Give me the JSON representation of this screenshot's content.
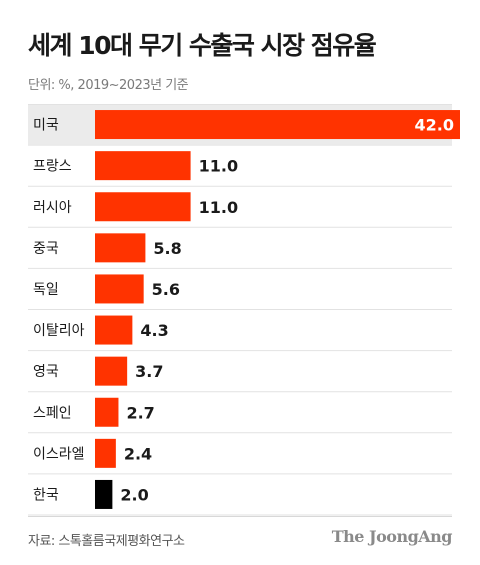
{
  "title": "세계 10대 무기 수출국 시장 점유율",
  "subtitle": "단위: %, 2019~2023년 기준",
  "source": "자료: 스톡홀름국제평화연구소",
  "logo": "The JoongAng",
  "colors": {
    "bar": "#ff3300",
    "highlight_bar": "#000000",
    "top_row_bg": "#ebebeb"
  },
  "chart_data": {
    "type": "bar",
    "orientation": "horizontal",
    "title": "세계 10대 무기 수출국 시장 점유율",
    "subtitle": "단위: %, 2019~2023년 기준",
    "categories": [
      "미국",
      "프랑스",
      "러시아",
      "중국",
      "독일",
      "이탈리아",
      "영국",
      "스페인",
      "이스라엘",
      "한국"
    ],
    "values": [
      42.0,
      11.0,
      11.0,
      5.8,
      5.6,
      4.3,
      3.7,
      2.7,
      2.4,
      2.0
    ],
    "labels": [
      "42.0",
      "11.0",
      "11.0",
      "5.8",
      "5.6",
      "4.3",
      "3.7",
      "2.7",
      "2.4",
      "2.0"
    ],
    "highlight": "한국",
    "xlim": [
      0,
      42.0
    ],
    "grid": false,
    "legend": "none"
  }
}
